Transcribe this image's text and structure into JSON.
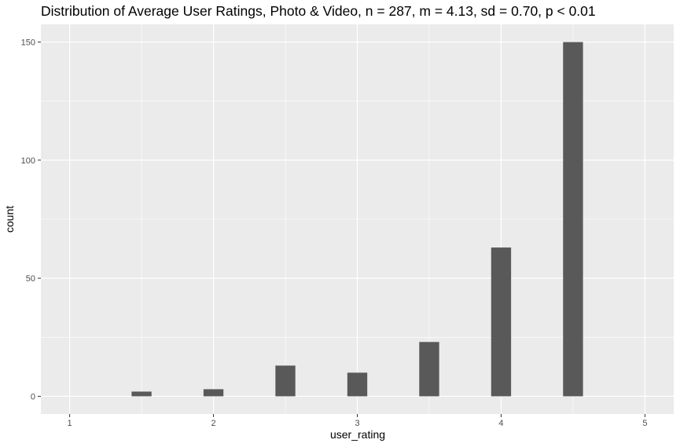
{
  "chart_data": {
    "type": "bar",
    "title": "Distribution of Average User Ratings, Photo & Video, n = 287, m = 4.13, sd = 0.70, p < 0.01",
    "xlabel": "user_rating",
    "ylabel": "count",
    "xlim": [
      0.8,
      5.2
    ],
    "ylim": [
      -7.5,
      157.5
    ],
    "x_ticks": [
      1,
      2,
      3,
      4,
      5
    ],
    "y_ticks": [
      0,
      50,
      100,
      150
    ],
    "bin_width": 0.1385,
    "x": [
      1.5,
      2.0,
      2.5,
      3.0,
      3.5,
      4.0,
      4.5
    ],
    "values": [
      2,
      3,
      13,
      10,
      23,
      63,
      150
    ],
    "grid": true,
    "panel_background": "#ebebeb",
    "bar_color": "#595959",
    "grid_major_color": "#ffffff",
    "tick_color": "#333333"
  }
}
